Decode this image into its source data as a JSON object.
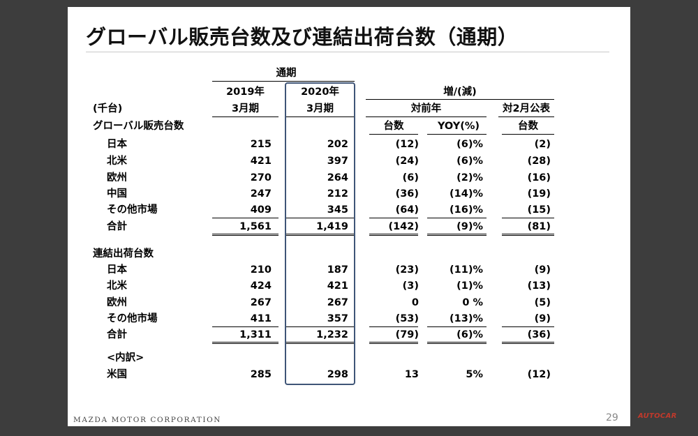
{
  "title": "グローバル販売台数及び連結出荷台数（通期）",
  "header": {
    "period_label": "通期",
    "unit": "(千台)",
    "col2019_year": "2019年",
    "col2019_month": "3月期",
    "col2020_year": "2020年",
    "col2020_month": "3月期",
    "increase_label": "増/(減)",
    "vs_prev_year": "対前年",
    "vs_feb": "対2月公表",
    "units_label": "台数",
    "yoy_label": "YOY(%)",
    "units_label2": "台数"
  },
  "sections": [
    {
      "label": "グローバル販売台数",
      "rows": [
        {
          "name": "日本",
          "y2019": "215",
          "y2020": "202",
          "diff": "(12)",
          "yoy": "(6)%",
          "feb": "(2)"
        },
        {
          "name": "北米",
          "y2019": "421",
          "y2020": "397",
          "diff": "(24)",
          "yoy": "(6)%",
          "feb": "(28)"
        },
        {
          "name": "欧州",
          "y2019": "270",
          "y2020": "264",
          "diff": "(6)",
          "yoy": "(2)%",
          "feb": "(16)"
        },
        {
          "name": "中国",
          "y2019": "247",
          "y2020": "212",
          "diff": "(36)",
          "yoy": "(14)%",
          "feb": "(19)"
        },
        {
          "name": "その他市場",
          "y2019": "409",
          "y2020": "345",
          "diff": "(64)",
          "yoy": "(16)%",
          "feb": "(15)"
        },
        {
          "name": "合計",
          "y2019": "1,561",
          "y2020": "1,419",
          "diff": "(142)",
          "yoy": "(9)%",
          "feb": "(81)"
        }
      ]
    },
    {
      "label": "連結出荷台数",
      "rows": [
        {
          "name": "日本",
          "y2019": "210",
          "y2020": "187",
          "diff": "(23)",
          "yoy": "(11)%",
          "feb": "(9)"
        },
        {
          "name": "北米",
          "y2019": "424",
          "y2020": "421",
          "diff": "(3)",
          "yoy": "(1)%",
          "feb": "(13)"
        },
        {
          "name": "欧州",
          "y2019": "267",
          "y2020": "267",
          "diff": "0",
          "yoy": "0 %",
          "feb": "(5)"
        },
        {
          "name": "その他市場",
          "y2019": "411",
          "y2020": "357",
          "diff": "(53)",
          "yoy": "(13)%",
          "feb": "(9)"
        },
        {
          "name": "合計",
          "y2019": "1,311",
          "y2020": "1,232",
          "diff": "(79)",
          "yoy": "(6)%",
          "feb": "(36)"
        }
      ]
    }
  ],
  "breakdown_label": "<内訳>",
  "breakdown_row": {
    "name": "米国",
    "y2019": "285",
    "y2020": "298",
    "diff": "13",
    "yoy": "5%",
    "feb": "(12)"
  },
  "footer": "MAZDA MOTOR CORPORATION",
  "page_number": "29",
  "watermark": "AUTOCAR"
}
